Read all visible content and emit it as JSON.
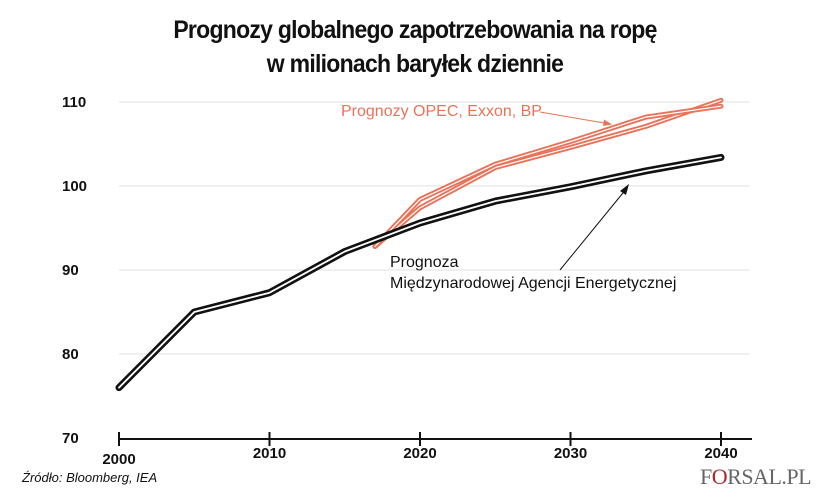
{
  "chart_data": {
    "type": "line",
    "title": "Prognozy globalnego zapotrzebowania na ropę",
    "subtitle": "w  milionach baryłek dziennie",
    "xlabel": "",
    "ylabel": "",
    "xlim": [
      2000,
      2042
    ],
    "ylim": [
      70,
      110
    ],
    "x_ticks": [
      2000,
      2010,
      2020,
      2030,
      2040
    ],
    "y_ticks": [
      70,
      80,
      90,
      100,
      110
    ],
    "grid": "horizontal",
    "series": [
      {
        "name": "Prognoza Międzynarodowej Agencji Energetycznej",
        "color": "#111111",
        "x": [
          2000,
          2005,
          2010,
          2015,
          2020,
          2025,
          2030,
          2035,
          2040
        ],
        "y": [
          76,
          85,
          87.3,
          92.2,
          95.6,
          98.2,
          99.9,
          101.8,
          103.4
        ]
      },
      {
        "name": "Prognozy OPEC, Exxon, BP",
        "color": "#e8735a",
        "x": [
          2017,
          2020,
          2025,
          2030,
          2035,
          2040
        ],
        "y": [
          92.8,
          98.4,
          102.6,
          105.3,
          108.2,
          109.5
        ]
      },
      {
        "name": "Prognozy OPEC, Exxon, BP",
        "color": "#e8735a",
        "x": [
          2017,
          2020,
          2025,
          2030,
          2035,
          2040
        ],
        "y": [
          92.8,
          97.4,
          102.2,
          104.6,
          107.1,
          110.2
        ]
      }
    ],
    "annotations": {
      "opec": "Prognozy OPEC, Exxon, BP",
      "iea_line1": "Prognoza",
      "iea_line2": "Międzynarodowej Agencji Energetycznej"
    }
  },
  "source": "Źródło:  Bloomberg, IEA",
  "logo": {
    "f": "F",
    "o": "O",
    "rest": "RSAL.PL"
  }
}
